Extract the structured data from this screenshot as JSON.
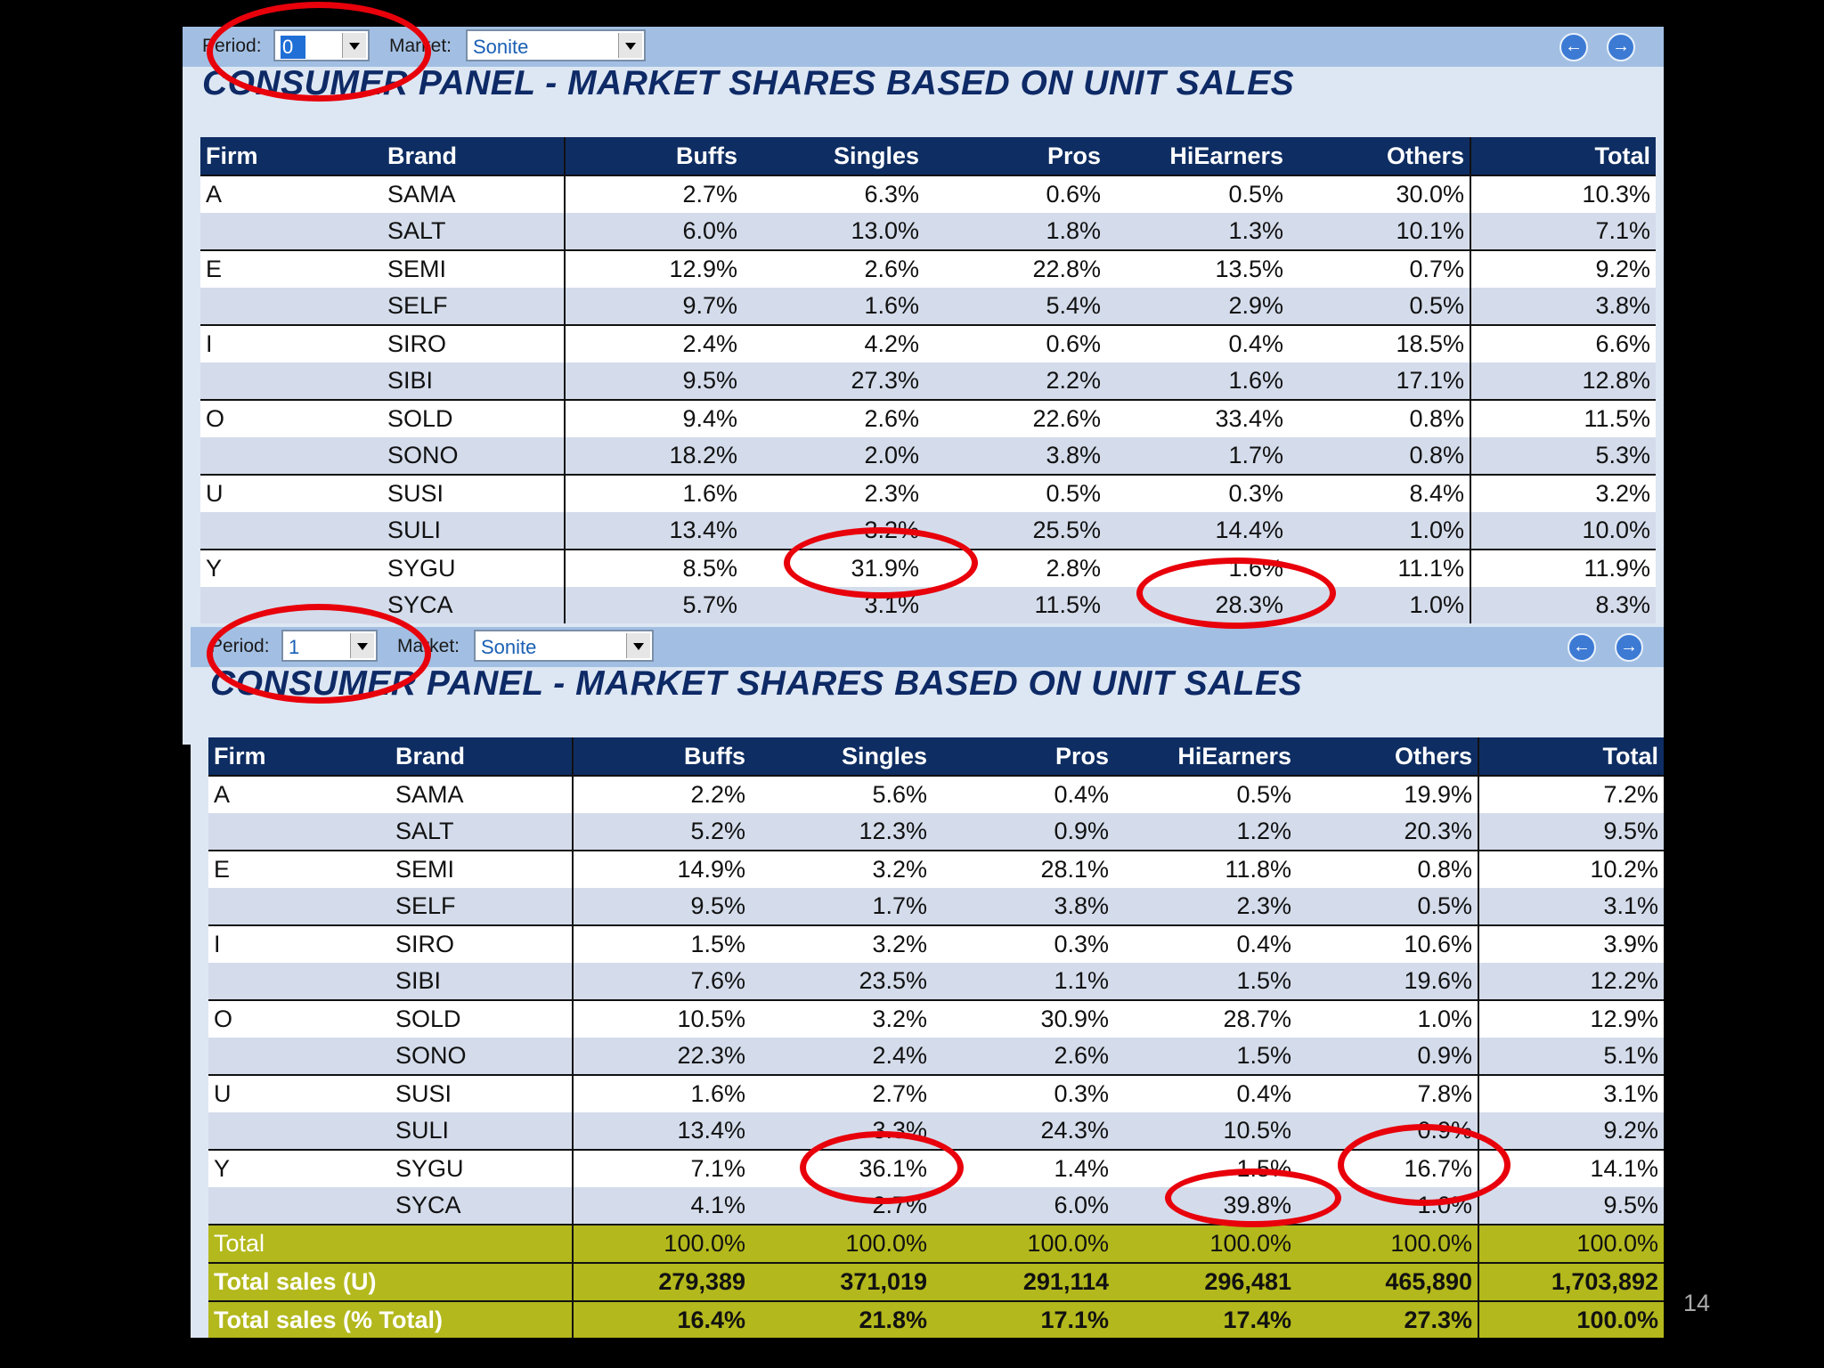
{
  "toolbar": {
    "period_label": "Period:",
    "market_label": "Market:",
    "market_value": "Sonite",
    "prev_icon": "arrow-left-icon",
    "next_icon": "arrow-right-icon"
  },
  "title": "CONSUMER PANEL - MARKET SHARES BASED ON UNIT SALES",
  "columns": [
    "Firm",
    "Brand",
    "Buffs",
    "Singles",
    "Pros",
    "HiEarners",
    "Others",
    "Total"
  ],
  "colors": {
    "header": "#0e2d62",
    "stripe": "#d4dceb",
    "total": "#b3b81c",
    "highlight": "#e8000b"
  },
  "panels": [
    {
      "period": "0",
      "rows": [
        [
          "A",
          "SAMA",
          "2.7%",
          "6.3%",
          "0.6%",
          "0.5%",
          "30.0%",
          "10.3%"
        ],
        [
          "",
          "SALT",
          "6.0%",
          "13.0%",
          "1.8%",
          "1.3%",
          "10.1%",
          "7.1%"
        ],
        [
          "E",
          "SEMI",
          "12.9%",
          "2.6%",
          "22.8%",
          "13.5%",
          "0.7%",
          "9.2%"
        ],
        [
          "",
          "SELF",
          "9.7%",
          "1.6%",
          "5.4%",
          "2.9%",
          "0.5%",
          "3.8%"
        ],
        [
          "I",
          "SIRO",
          "2.4%",
          "4.2%",
          "0.6%",
          "0.4%",
          "18.5%",
          "6.6%"
        ],
        [
          "",
          "SIBI",
          "9.5%",
          "27.3%",
          "2.2%",
          "1.6%",
          "17.1%",
          "12.8%"
        ],
        [
          "O",
          "SOLD",
          "9.4%",
          "2.6%",
          "22.6%",
          "33.4%",
          "0.8%",
          "11.5%"
        ],
        [
          "",
          "SONO",
          "18.2%",
          "2.0%",
          "3.8%",
          "1.7%",
          "0.8%",
          "5.3%"
        ],
        [
          "U",
          "SUSI",
          "1.6%",
          "2.3%",
          "0.5%",
          "0.3%",
          "8.4%",
          "3.2%"
        ],
        [
          "",
          "SULI",
          "13.4%",
          "3.2%",
          "25.5%",
          "14.4%",
          "1.0%",
          "10.0%"
        ],
        [
          "Y",
          "SYGU",
          "8.5%",
          "31.9%",
          "2.8%",
          "1.6%",
          "11.1%",
          "11.9%"
        ],
        [
          "",
          "SYCA",
          "5.7%",
          "3.1%",
          "11.5%",
          "28.3%",
          "1.0%",
          "8.3%"
        ]
      ]
    },
    {
      "period": "1",
      "rows": [
        [
          "A",
          "SAMA",
          "2.2%",
          "5.6%",
          "0.4%",
          "0.5%",
          "19.9%",
          "7.2%"
        ],
        [
          "",
          "SALT",
          "5.2%",
          "12.3%",
          "0.9%",
          "1.2%",
          "20.3%",
          "9.5%"
        ],
        [
          "E",
          "SEMI",
          "14.9%",
          "3.2%",
          "28.1%",
          "11.8%",
          "0.8%",
          "10.2%"
        ],
        [
          "",
          "SELF",
          "9.5%",
          "1.7%",
          "3.8%",
          "2.3%",
          "0.5%",
          "3.1%"
        ],
        [
          "I",
          "SIRO",
          "1.5%",
          "3.2%",
          "0.3%",
          "0.4%",
          "10.6%",
          "3.9%"
        ],
        [
          "",
          "SIBI",
          "7.6%",
          "23.5%",
          "1.1%",
          "1.5%",
          "19.6%",
          "12.2%"
        ],
        [
          "O",
          "SOLD",
          "10.5%",
          "3.2%",
          "30.9%",
          "28.7%",
          "1.0%",
          "12.9%"
        ],
        [
          "",
          "SONO",
          "22.3%",
          "2.4%",
          "2.6%",
          "1.5%",
          "0.9%",
          "5.1%"
        ],
        [
          "U",
          "SUSI",
          "1.6%",
          "2.7%",
          "0.3%",
          "0.4%",
          "7.8%",
          "3.1%"
        ],
        [
          "",
          "SULI",
          "13.4%",
          "3.3%",
          "24.3%",
          "10.5%",
          "0.9%",
          "9.2%"
        ],
        [
          "Y",
          "SYGU",
          "7.1%",
          "36.1%",
          "1.4%",
          "1.5%",
          "16.7%",
          "14.1%"
        ],
        [
          "",
          "SYCA",
          "4.1%",
          "2.7%",
          "6.0%",
          "39.8%",
          "1.0%",
          "9.5%"
        ]
      ],
      "totals": [
        [
          "Total",
          "100.0%",
          "100.0%",
          "100.0%",
          "100.0%",
          "100.0%",
          "100.0%"
        ],
        [
          "Total sales (U)",
          "279,389",
          "371,019",
          "291,114",
          "296,481",
          "465,890",
          "1,703,892"
        ],
        [
          "Total sales (% Total)",
          "16.4%",
          "21.8%",
          "17.1%",
          "17.4%",
          "27.3%",
          "100.0%"
        ]
      ]
    }
  ],
  "page_number": "14"
}
